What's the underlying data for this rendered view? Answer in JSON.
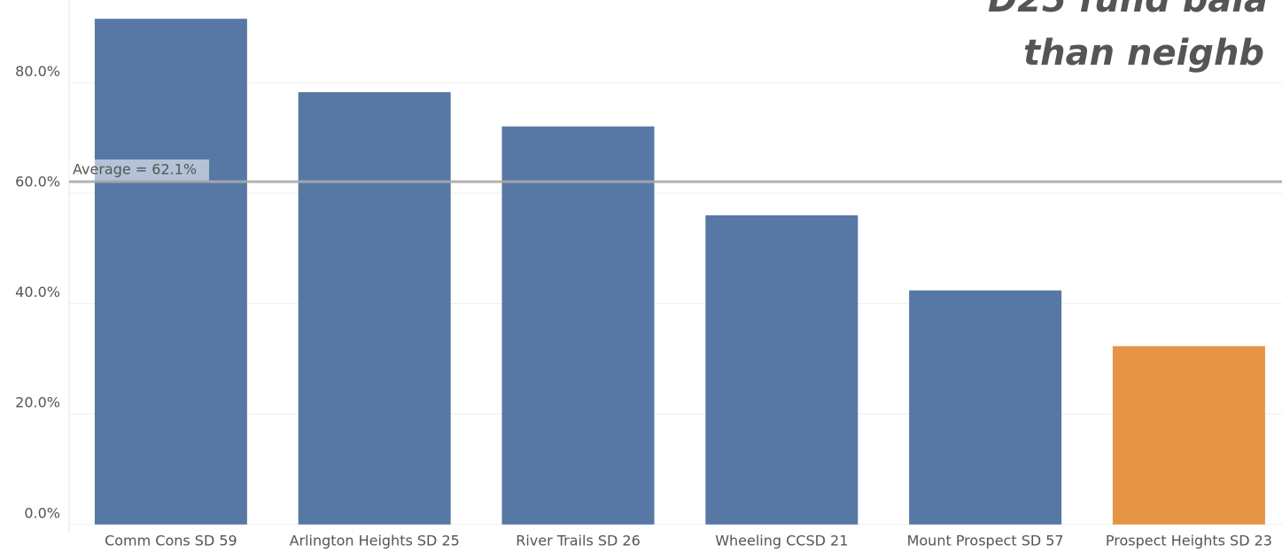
{
  "chart_data": {
    "type": "bar",
    "title_lines": [
      "D25 fund bala",
      "than neighb"
    ],
    "categories": [
      "Comm Cons SD 59",
      "Arlington Heights SD 25",
      "River Trails SD 26",
      "Wheeling CCSD 21",
      "Mount Prospect SD 57",
      "Prospect Heights SD 23"
    ],
    "values": [
      91.6,
      78.3,
      72.1,
      56.0,
      42.4,
      32.3
    ],
    "colors": [
      "#5778a4",
      "#5778a4",
      "#5778a4",
      "#5778a4",
      "#5778a4",
      "#e49444"
    ],
    "ylim": [
      -1.5,
      95
    ],
    "yticks": [
      {
        "value": 0,
        "label": "0.0%"
      },
      {
        "value": 20,
        "label": "20.0%"
      },
      {
        "value": 40,
        "label": "40.0%"
      },
      {
        "value": 60,
        "label": "60.0%"
      },
      {
        "value": 80,
        "label": "80.0%"
      }
    ],
    "grid": true,
    "reference_line": {
      "value": 62.1,
      "label": "Average = 62.1%",
      "color": "#aaaaaa"
    }
  }
}
